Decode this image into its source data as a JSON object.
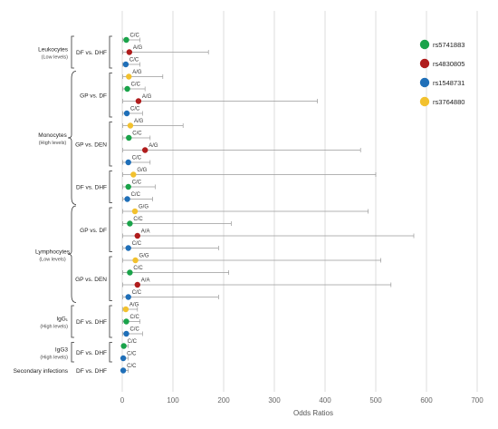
{
  "chart_data": {
    "type": "forest",
    "xlabel": "Odds Ratios",
    "xlim": [
      0,
      700
    ],
    "xticks": [
      0,
      100,
      200,
      300,
      400,
      500,
      600,
      700
    ],
    "grid": "vertical",
    "legend_position": "top-right",
    "legend": [
      {
        "name": "rs5741883",
        "color": "#1aa34a"
      },
      {
        "name": "rs4830805",
        "color": "#b01c1c"
      },
      {
        "name": "rs1548731",
        "color": "#1f6fb8"
      },
      {
        "name": "rs3764880",
        "color": "#f2c12e"
      }
    ],
    "groups": [
      {
        "label": "Leukocytes",
        "sublabel": "(Low levels)",
        "subgroups": [
          {
            "label": "DF vs. DHF",
            "rows": [
              0,
              1,
              2
            ]
          }
        ]
      },
      {
        "label": "Monocytes",
        "sublabel": "(High levels)",
        "subgroups": [
          {
            "label": "GP vs. DF",
            "rows": [
              3,
              4,
              5,
              6
            ]
          },
          {
            "label": "GP vs. DEN",
            "rows": [
              7,
              8,
              9,
              10
            ]
          },
          {
            "label": "DF vs. DHF",
            "rows": [
              11,
              12,
              13
            ]
          }
        ]
      },
      {
        "label": "Lymphocytes",
        "sublabel": "(Low levels)",
        "subgroups": [
          {
            "label": "GP vs. DF",
            "rows": [
              14,
              15,
              16,
              17
            ]
          },
          {
            "label": "GP vs. DEN",
            "rows": [
              18,
              19,
              20,
              21
            ]
          }
        ]
      },
      {
        "label": "IgG₁",
        "sublabel": "(High levels)",
        "subgroups": [
          {
            "label": "DF vs. DHF",
            "rows": [
              22,
              23,
              24
            ]
          }
        ]
      },
      {
        "label": "IgG3",
        "sublabel": "(High levels)",
        "subgroups": [
          {
            "label": "DF vs. DHF",
            "rows": [
              25,
              26
            ]
          }
        ]
      },
      {
        "label": "Secondary infections",
        "sublabel": "",
        "subgroups": [
          {
            "label": "DF vs. DHF",
            "rows": [
              27
            ]
          }
        ]
      }
    ],
    "rows": [
      {
        "snp": "rs5741883",
        "genotype": "C/C",
        "or": 8,
        "lo": 1,
        "hi": 35
      },
      {
        "snp": "rs4830805",
        "genotype": "A/G",
        "or": 14,
        "lo": 1,
        "hi": 170
      },
      {
        "snp": "rs1548731",
        "genotype": "C/C",
        "or": 7,
        "lo": 1,
        "hi": 35
      },
      {
        "snp": "rs3764880",
        "genotype": "A/G",
        "or": 13,
        "lo": 1,
        "hi": 80
      },
      {
        "snp": "rs5741883",
        "genotype": "C/C",
        "or": 10,
        "lo": 1,
        "hi": 45
      },
      {
        "snp": "rs4830805",
        "genotype": "A/G",
        "or": 32,
        "lo": 1,
        "hi": 385
      },
      {
        "snp": "rs1548731",
        "genotype": "C/C",
        "or": 9,
        "lo": 1,
        "hi": 40
      },
      {
        "snp": "rs3764880",
        "genotype": "A/G",
        "or": 16,
        "lo": 1,
        "hi": 120
      },
      {
        "snp": "rs5741883",
        "genotype": "C/C",
        "or": 13,
        "lo": 1,
        "hi": 55
      },
      {
        "snp": "rs4830805",
        "genotype": "A/G",
        "or": 45,
        "lo": 1,
        "hi": 470
      },
      {
        "snp": "rs1548731",
        "genotype": "C/C",
        "or": 12,
        "lo": 1,
        "hi": 55
      },
      {
        "snp": "rs3764880",
        "genotype": "G/G",
        "or": 22,
        "lo": 1,
        "hi": 500
      },
      {
        "snp": "rs5741883",
        "genotype": "C/C",
        "or": 12,
        "lo": 1,
        "hi": 65
      },
      {
        "snp": "rs1548731",
        "genotype": "C/C",
        "or": 10,
        "lo": 1,
        "hi": 60
      },
      {
        "snp": "rs3764880",
        "genotype": "G/G",
        "or": 25,
        "lo": 1,
        "hi": 485
      },
      {
        "snp": "rs5741883",
        "genotype": "C/C",
        "or": 15,
        "lo": 1,
        "hi": 215
      },
      {
        "snp": "rs4830805",
        "genotype": "A/A",
        "or": 30,
        "lo": 1,
        "hi": 575
      },
      {
        "snp": "rs1548731",
        "genotype": "C/C",
        "or": 12,
        "lo": 1,
        "hi": 190
      },
      {
        "snp": "rs3764880",
        "genotype": "G/G",
        "or": 26,
        "lo": 1,
        "hi": 510
      },
      {
        "snp": "rs5741883",
        "genotype": "C/C",
        "or": 15,
        "lo": 1,
        "hi": 210
      },
      {
        "snp": "rs4830805",
        "genotype": "A/A",
        "or": 30,
        "lo": 1,
        "hi": 530
      },
      {
        "snp": "rs1548731",
        "genotype": "C/C",
        "or": 12,
        "lo": 1,
        "hi": 190
      },
      {
        "snp": "rs3764880",
        "genotype": "A/G",
        "or": 7,
        "lo": 1,
        "hi": 30
      },
      {
        "snp": "rs5741883",
        "genotype": "C/C",
        "or": 8,
        "lo": 1,
        "hi": 35
      },
      {
        "snp": "rs1548731",
        "genotype": "C/C",
        "or": 8,
        "lo": 1,
        "hi": 40
      },
      {
        "snp": "rs5741883",
        "genotype": "C/C",
        "or": 3,
        "lo": 1,
        "hi": 12
      },
      {
        "snp": "rs1548731",
        "genotype": "C/C",
        "or": 2,
        "lo": 1,
        "hi": 12
      },
      {
        "snp": "rs1548731",
        "genotype": "C/C",
        "or": 2,
        "lo": 1,
        "hi": 12
      }
    ]
  }
}
